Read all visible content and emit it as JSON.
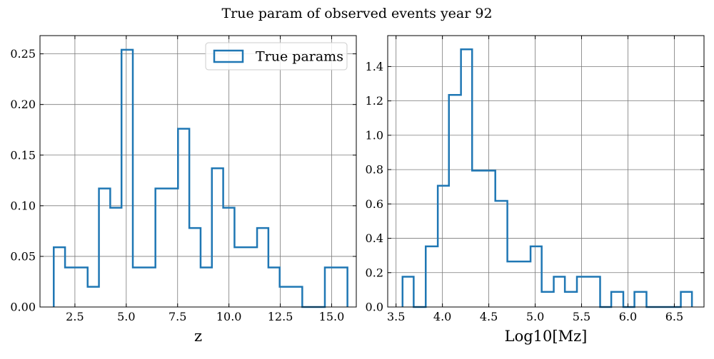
{
  "figure": {
    "title": "True param of observed events year 92"
  },
  "chart_data": [
    {
      "type": "bar",
      "histtype": "step",
      "xlabel": "z",
      "ylabel": "",
      "xlim": [
        0.8,
        16.2
      ],
      "ylim": [
        0,
        0.268
      ],
      "xticks": [
        2.5,
        5.0,
        7.5,
        10.0,
        12.5,
        15.0
      ],
      "xtick_labels": [
        "2.5",
        "5.0",
        "7.5",
        "10.0",
        "12.5",
        "15.0"
      ],
      "yticks": [
        0,
        0.05,
        0.1,
        0.15,
        0.2,
        0.25
      ],
      "ytick_labels": [
        "0.00",
        "0.05",
        "0.10",
        "0.15",
        "0.20",
        "0.25"
      ],
      "grid": true,
      "legend": {
        "position": "top-right",
        "entries": [
          "True params"
        ]
      },
      "bin_edges": [
        1.47,
        2.02,
        2.57,
        3.12,
        3.67,
        4.22,
        4.77,
        5.32,
        5.87,
        6.42,
        6.97,
        7.52,
        8.07,
        8.62,
        9.17,
        9.72,
        10.27,
        10.82,
        11.37,
        11.92,
        12.47,
        13.02,
        13.57,
        14.12,
        14.67,
        15.22,
        15.77
      ],
      "series": [
        {
          "name": "True params",
          "color": "#1f77b4",
          "values": [
            0.059,
            0.039,
            0.039,
            0.02,
            0.117,
            0.098,
            0.254,
            0.039,
            0.039,
            0.117,
            0.117,
            0.176,
            0.078,
            0.039,
            0.137,
            0.098,
            0.059,
            0.059,
            0.078,
            0.039,
            0.02,
            0.02,
            0.0,
            0.0,
            0.039,
            0.039
          ]
        }
      ]
    },
    {
      "type": "bar",
      "histtype": "step",
      "xlabel": "Log10[Mz]",
      "ylabel": "",
      "xlim": [
        3.41,
        6.82
      ],
      "ylim": [
        0,
        1.58
      ],
      "xticks": [
        3.5,
        4.0,
        4.5,
        5.0,
        5.5,
        6.0,
        6.5
      ],
      "xtick_labels": [
        "3.5",
        "4.0",
        "4.5",
        "5.0",
        "5.5",
        "6.0",
        "6.5"
      ],
      "yticks": [
        0,
        0.2,
        0.4,
        0.6,
        0.8,
        1.0,
        1.2,
        1.4
      ],
      "ytick_labels": [
        "0.0",
        "0.2",
        "0.4",
        "0.6",
        "0.8",
        "1.0",
        "1.2",
        "1.4"
      ],
      "grid": true,
      "bin_edges": [
        3.57,
        3.69,
        3.82,
        3.95,
        4.07,
        4.2,
        4.32,
        4.45,
        4.57,
        4.7,
        4.82,
        4.95,
        5.07,
        5.2,
        5.32,
        5.45,
        5.57,
        5.7,
        5.82,
        5.95,
        6.07,
        6.2,
        6.32,
        6.45,
        6.57,
        6.69
      ],
      "series": [
        {
          "name": "True params",
          "color": "#1f77b4",
          "values": [
            0.176,
            0.0,
            0.353,
            0.706,
            1.235,
            1.5,
            0.794,
            0.794,
            0.618,
            0.265,
            0.265,
            0.353,
            0.088,
            0.176,
            0.088,
            0.176,
            0.176,
            0.0,
            0.088,
            0.0,
            0.088,
            0.0,
            0.0,
            0.0,
            0.088
          ]
        }
      ]
    }
  ]
}
